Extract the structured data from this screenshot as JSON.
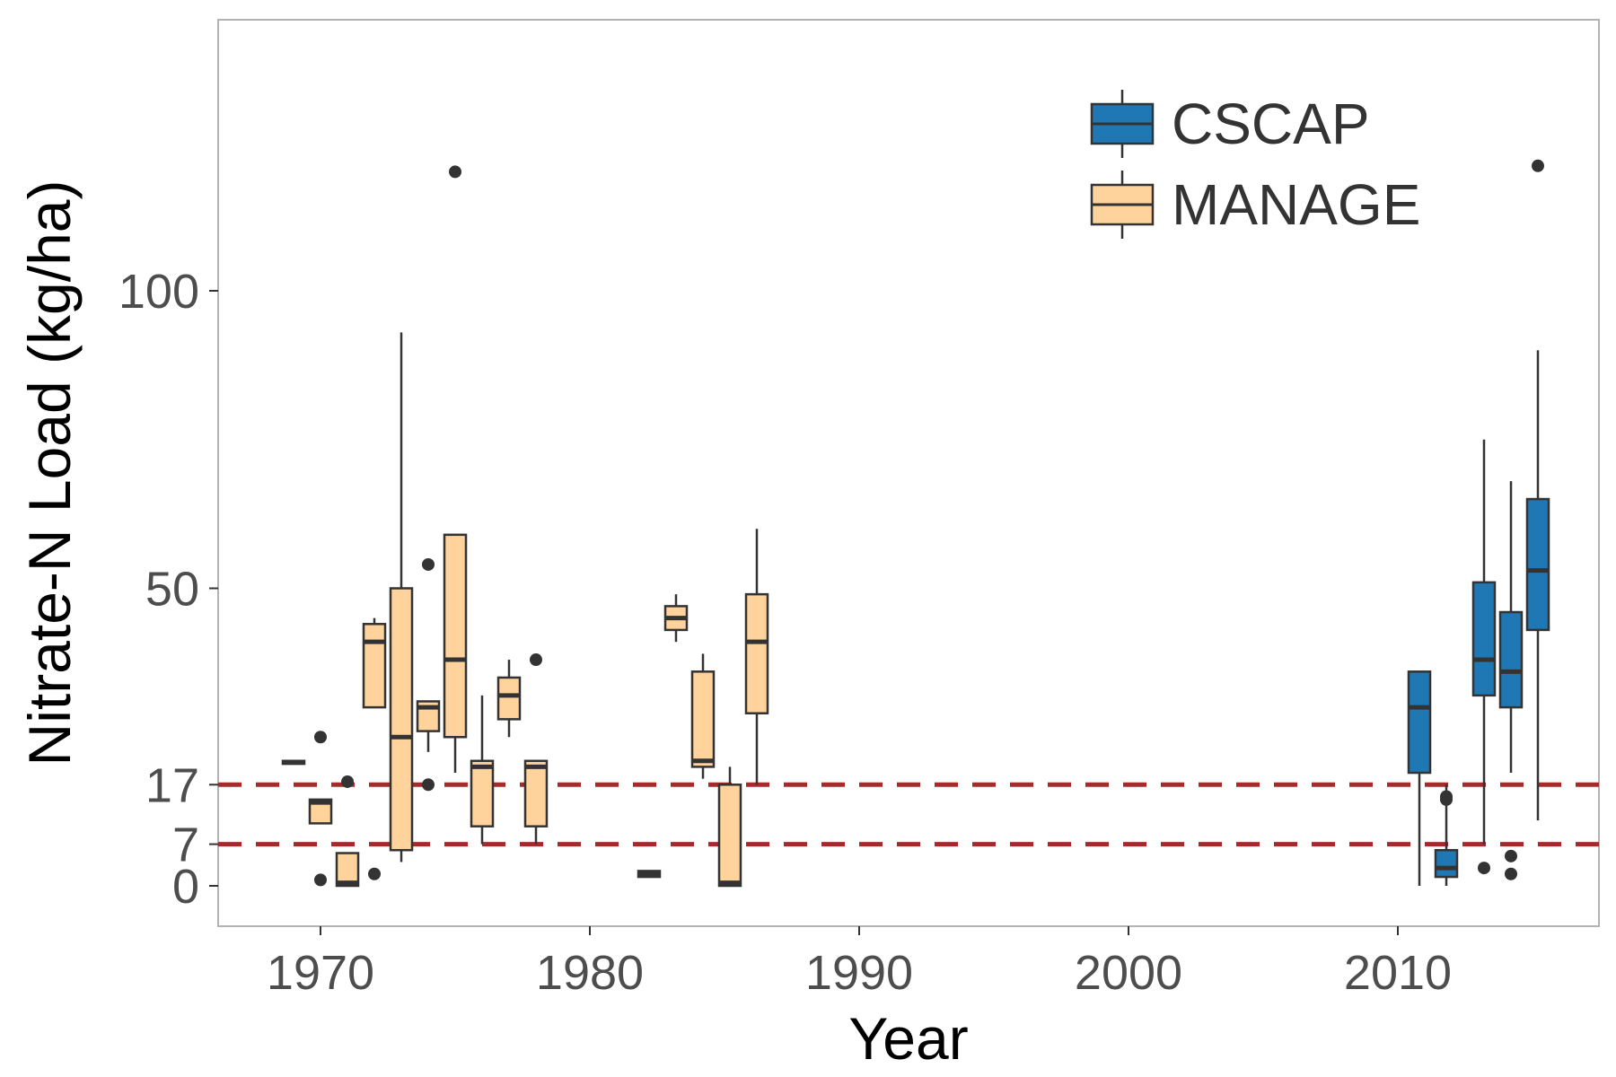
{
  "chart_data": {
    "type": "boxplot",
    "title": "",
    "xlabel": "Year",
    "ylabel": "Nitrate-N Load (kg/ha)",
    "xlim": [
      1966.2,
      1987.5
    ],
    "ylim": [
      -7,
      146
    ],
    "x_ticks": [
      1970,
      1980,
      1990,
      2000,
      2010
    ],
    "x_tick_labels": [
      "1970",
      "1980",
      "1990",
      "2000",
      "2010"
    ],
    "y_ticks": [
      0,
      7,
      17,
      50,
      100
    ],
    "y_tick_labels": [
      "0",
      "7",
      "17",
      "50",
      "100"
    ],
    "grid": false,
    "legend_position": "top-right",
    "colors": {
      "CSCAP": "#1f78b4",
      "MANAGE": "#ffd39b",
      "reference": "#a52a2a",
      "outline": "#333333"
    },
    "reference_lines": [
      7,
      17
    ],
    "series": [
      {
        "name": "CSCAP",
        "color": "#1f78b4",
        "boxes": [
          {
            "x": 2010.8,
            "whisker_low": 0,
            "q1": 19,
            "median": 30,
            "q3": 36,
            "whisker_high": 36,
            "outliers": []
          },
          {
            "x": 2011.8,
            "whisker_low": 0,
            "q1": 1.5,
            "median": 3,
            "q3": 6,
            "whisker_high": 17,
            "outliers": [
              14.5,
              15
            ]
          },
          {
            "x": 2013.2,
            "whisker_low": 7,
            "q1": 32,
            "median": 38,
            "q3": 51,
            "whisker_high": 75,
            "outliers": [
              3
            ]
          },
          {
            "x": 2014.2,
            "whisker_low": 19,
            "q1": 30,
            "median": 36,
            "q3": 46,
            "whisker_high": 68,
            "outliers": [
              5,
              2
            ]
          },
          {
            "x": 2015.2,
            "whisker_low": 11,
            "q1": 43,
            "median": 53,
            "q3": 65,
            "whisker_high": 90,
            "outliers": [
              121
            ]
          }
        ]
      },
      {
        "name": "MANAGE",
        "color": "#ffd39b",
        "boxes": [
          {
            "x": 1969.0,
            "whisker_low": 20.5,
            "q1": 20.5,
            "median": 20.8,
            "q3": 21,
            "whisker_high": 21,
            "outliers": []
          },
          {
            "x": 1970.0,
            "whisker_low": 10.5,
            "q1": 10.5,
            "median": 14,
            "q3": 14.5,
            "whisker_high": 14.5,
            "outliers": [
              25,
              1
            ]
          },
          {
            "x": 1971.0,
            "whisker_low": 0,
            "q1": 0,
            "median": 0.5,
            "q3": 5.5,
            "whisker_high": 5.5,
            "outliers": [
              17.5
            ]
          },
          {
            "x": 1972.0,
            "whisker_low": 30,
            "q1": 30,
            "median": 41,
            "q3": 44,
            "whisker_high": 45,
            "outliers": [
              2
            ]
          },
          {
            "x": 1973.0,
            "whisker_low": 4,
            "q1": 6,
            "median": 25,
            "q3": 50,
            "whisker_high": 93,
            "outliers": []
          },
          {
            "x": 1974.0,
            "whisker_low": 22.5,
            "q1": 26,
            "median": 30,
            "q3": 31,
            "whisker_high": 31,
            "outliers": [
              54,
              17
            ]
          },
          {
            "x": 1975.0,
            "whisker_low": 19,
            "q1": 25,
            "median": 38,
            "q3": 59,
            "whisker_high": 59,
            "outliers": [
              120
            ]
          },
          {
            "x": 1976.0,
            "whisker_low": 7,
            "q1": 10,
            "median": 20,
            "q3": 21,
            "whisker_high": 32,
            "outliers": []
          },
          {
            "x": 1977.0,
            "whisker_low": 25,
            "q1": 28,
            "median": 32,
            "q3": 35,
            "whisker_high": 38,
            "outliers": []
          },
          {
            "x": 1978.0,
            "whisker_low": 7,
            "q1": 10,
            "median": 20,
            "q3": 21,
            "whisker_high": 21,
            "outliers": [
              38
            ]
          },
          {
            "x": 1982.2,
            "whisker_low": 1.5,
            "q1": 1.5,
            "median": 2,
            "q3": 2.5,
            "whisker_high": 2.5,
            "outliers": []
          },
          {
            "x": 1983.2,
            "whisker_low": 41,
            "q1": 43,
            "median": 45,
            "q3": 47,
            "whisker_high": 49,
            "outliers": []
          },
          {
            "x": 1984.2,
            "whisker_low": 18,
            "q1": 20,
            "median": 21,
            "q3": 36,
            "whisker_high": 39,
            "outliers": []
          },
          {
            "x": 1985.2,
            "whisker_low": 0,
            "q1": 0,
            "median": 0.5,
            "q3": 17,
            "whisker_high": 20,
            "outliers": []
          },
          {
            "x": 1986.2,
            "whisker_low": 17,
            "q1": 29,
            "median": 41,
            "q3": 49,
            "whisker_high": 60,
            "outliers": []
          }
        ]
      }
    ]
  }
}
